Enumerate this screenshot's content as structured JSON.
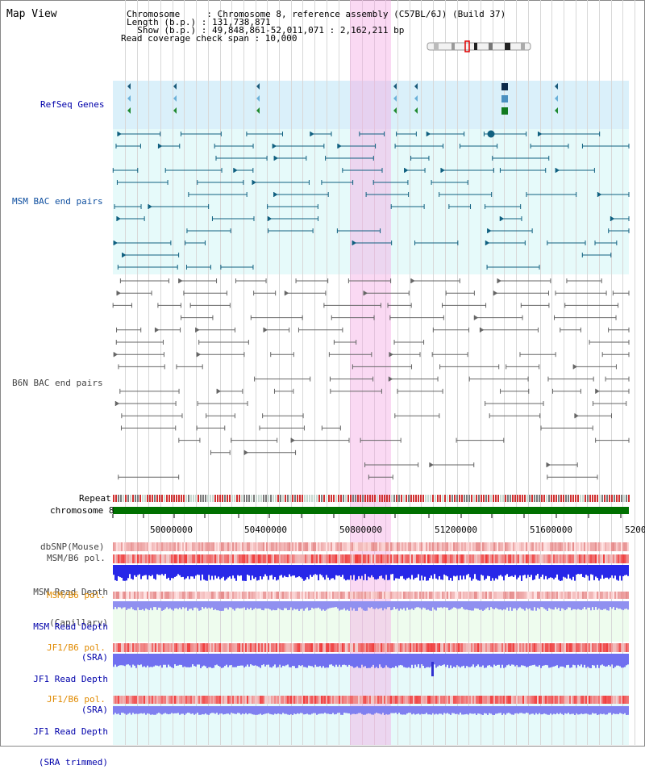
{
  "title": "Map View",
  "info": {
    "chromosome_line": "Chromosome     : Chromosome 8, reference assembly (C57BL/6J) (Build 37)",
    "length_line": "Length (b.p.) : 131,738,871",
    "show_line": "  Show (b.p.) : 49,848,861-52,011,071 : 2,162,211 bp",
    "span_line": "Read coverage check span : 10,000"
  },
  "tracks": {
    "refseq": "RefSeq Genes",
    "msm_bac": "MSM BAC end pairs",
    "b6n_bac": "B6N BAC end pairs",
    "repeat": "Repeat",
    "chromosome": "chromosome 8",
    "dbsnp": "dbSNP(Mouse)",
    "msm_b6_pol": "MSM/B6 pol.",
    "msm_read_depth_cap_1": "MSM Read Depth",
    "msm_read_depth_cap_2": "(Capillary)",
    "msm_b6_pol_2": "MSM/B6 pol.",
    "msm_read_depth_sra_1": "MSM Read Depth",
    "msm_read_depth_sra_2": "(SRA)",
    "jf1_b6_pol": "JF1/B6 pol.",
    "jf1_read_depth_sra_1": "JF1 Read Depth",
    "jf1_read_depth_sra_2": "(SRA)",
    "jf1_b6_pol_2": "JF1/B6 pol.",
    "jf1_read_depth_trim_1": "JF1 Read Depth",
    "jf1_read_depth_trim_2": "(SRA trimmed)"
  },
  "axis": {
    "ticks": [
      "50000000",
      "50400000",
      "50800000",
      "51200000",
      "51600000",
      "5200"
    ]
  },
  "colors": {
    "highlight": "#f6d6f0",
    "refseq_bg": "#daf0fa",
    "msm_bg": "#e6fafa",
    "green_bg": "#eefcee",
    "cyan_bg": "#e6fafa",
    "gene": "#1a5a7a",
    "bac_msm": "#106080",
    "bac_b6n": "#666666",
    "chrom": "#007000"
  }
}
